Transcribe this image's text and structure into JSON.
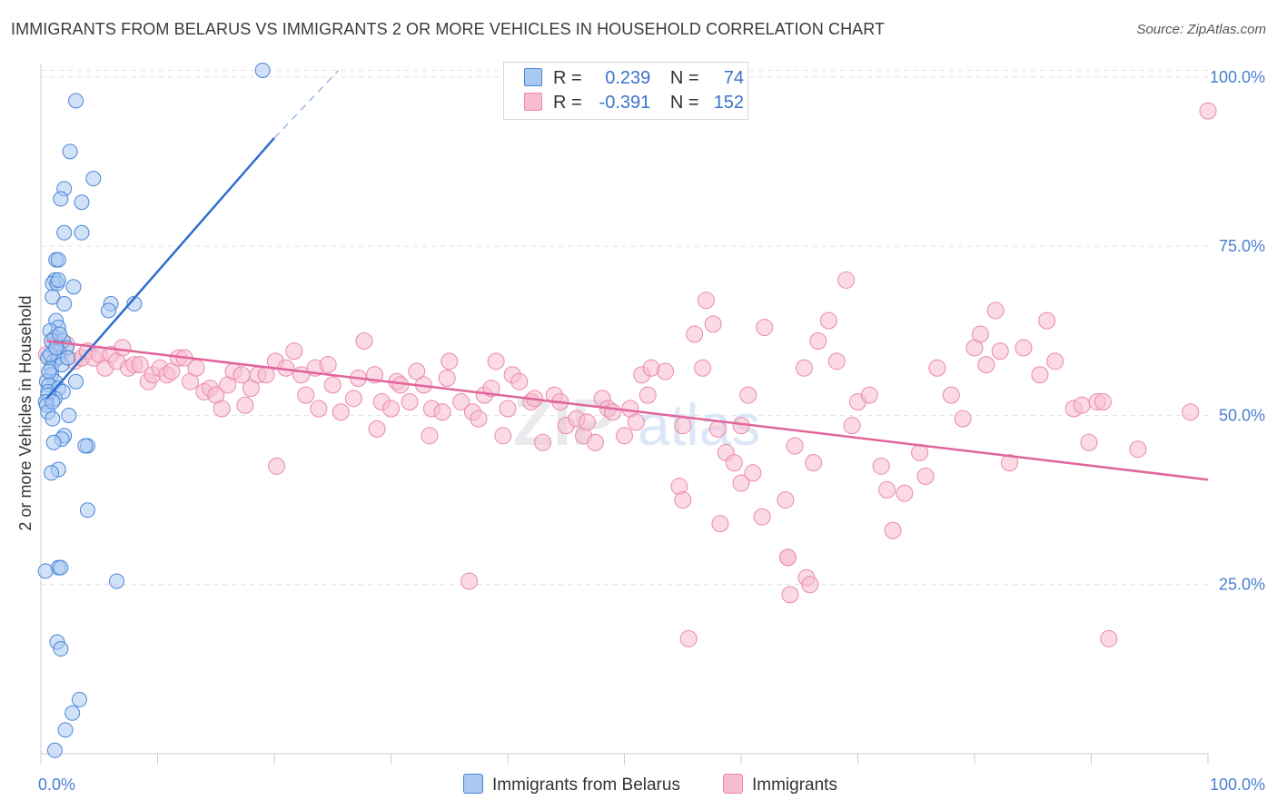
{
  "title": "IMMIGRANTS FROM BELARUS VS IMMIGRANTS 2 OR MORE VEHICLES IN HOUSEHOLD CORRELATION CHART",
  "source": "Source: ZipAtlas.com",
  "colors": {
    "blue_fill": "#a9c8f2",
    "blue_stroke": "#4a86d6",
    "blue_line": "#2e6fd0",
    "pink_fill": "#f7bcd0",
    "pink_stroke": "#e98aaa",
    "pink_line": "#e0659a",
    "tick_text": "#4a7fd0",
    "grid": "#e4e4e4"
  },
  "legend": {
    "rows": [
      {
        "r_label": "R =",
        "r_value": "0.239",
        "n_label": "N =",
        "n_value": "74"
      },
      {
        "r_label": "R =",
        "r_value": "-0.391",
        "n_label": "N =",
        "n_value": "152"
      }
    ]
  },
  "bottom_legend": [
    "Immigrants from Belarus",
    "Immigrants"
  ],
  "chart_data": {
    "type": "scatter",
    "title": "IMMIGRANTS FROM BELARUS VS IMMIGRANTS 2 OR MORE VEHICLES IN HOUSEHOLD CORRELATION CHART",
    "ylabel": "2 or more Vehicles in Household",
    "xlabel": "",
    "xlim": [
      0,
      100
    ],
    "ylim": [
      0,
      102
    ],
    "x_ticks": [
      "0.0%",
      "100.0%"
    ],
    "y_ticks": [
      {
        "value": 25,
        "label": "25.0%"
      },
      {
        "value": 50,
        "label": "50.0%"
      },
      {
        "value": 75,
        "label": "75.0%"
      },
      {
        "value": 100,
        "label": "100.0%"
      }
    ],
    "grid": "horizontal dashed",
    "legend_position": "top-center",
    "series": [
      {
        "name": "Immigrants from Belarus",
        "stats": {
          "R": 0.239,
          "N": 74
        },
        "trend": {
          "x0": 0.5,
          "y0": 52.5,
          "x1": 20,
          "y1": 91,
          "dashed_to": {
            "x": 25.5,
            "y": 101
          }
        },
        "points": [
          [
            19,
            101
          ],
          [
            3,
            96.5
          ],
          [
            2.5,
            89
          ],
          [
            4.5,
            85
          ],
          [
            2,
            83.5
          ],
          [
            1.7,
            82
          ],
          [
            3.5,
            81.5
          ],
          [
            2,
            77
          ],
          [
            3.5,
            77
          ],
          [
            1.3,
            73
          ],
          [
            1.5,
            73
          ],
          [
            1.2,
            70
          ],
          [
            1.0,
            69.5
          ],
          [
            1.4,
            69.5
          ],
          [
            1.5,
            70
          ],
          [
            2.8,
            69
          ],
          [
            1,
            67.5
          ],
          [
            2,
            66.5
          ],
          [
            8,
            66.5
          ],
          [
            6,
            66.5
          ],
          [
            5.8,
            65.5
          ],
          [
            1.3,
            64
          ],
          [
            1.5,
            63
          ],
          [
            0.8,
            62.5
          ],
          [
            1.2,
            61.5
          ],
          [
            1.9,
            61
          ],
          [
            2.2,
            60
          ],
          [
            0.9,
            61
          ],
          [
            1.2,
            59.5
          ],
          [
            1.5,
            59.5
          ],
          [
            0.6,
            58.5
          ],
          [
            1.1,
            58
          ],
          [
            1.5,
            58.5
          ],
          [
            0.9,
            57
          ],
          [
            1.8,
            57.5
          ],
          [
            0.9,
            56
          ],
          [
            1.2,
            55
          ],
          [
            0.5,
            55
          ],
          [
            0.7,
            54.5
          ],
          [
            1.5,
            54
          ],
          [
            3,
            55
          ],
          [
            0.6,
            53.5
          ],
          [
            1.9,
            53.5
          ],
          [
            1.2,
            52.5
          ],
          [
            0.6,
            53
          ],
          [
            0.4,
            52
          ],
          [
            0.5,
            51.5
          ],
          [
            0.6,
            50.5
          ],
          [
            1.0,
            49.5
          ],
          [
            2.4,
            50
          ],
          [
            2.0,
            47
          ],
          [
            1.8,
            46.5
          ],
          [
            1.1,
            46
          ],
          [
            4.0,
            45.5
          ],
          [
            3.8,
            45.5
          ],
          [
            1.5,
            42
          ],
          [
            0.9,
            41.5
          ],
          [
            4.0,
            36
          ],
          [
            1.5,
            27.5
          ],
          [
            1.7,
            27.5
          ],
          [
            0.4,
            27
          ],
          [
            6.5,
            25.5
          ],
          [
            1.4,
            16.5
          ],
          [
            1.7,
            15.5
          ],
          [
            3.3,
            8
          ],
          [
            2.7,
            6
          ],
          [
            2.1,
            3.5
          ],
          [
            1.2,
            0.5
          ],
          [
            0.8,
            59
          ],
          [
            1.6,
            62
          ],
          [
            2.3,
            58.5
          ],
          [
            0.7,
            56.5
          ],
          [
            1.0,
            52
          ],
          [
            1.3,
            60
          ]
        ]
      },
      {
        "name": "Immigrants",
        "stats": {
          "R": -0.391,
          "N": 152
        },
        "trend": {
          "x0": 0.5,
          "y0": 61,
          "x1": 100,
          "y1": 40.5
        },
        "points": [
          [
            100,
            95
          ],
          [
            0.5,
            59
          ],
          [
            1,
            61
          ],
          [
            1.6,
            59.5
          ],
          [
            2.2,
            60.5
          ],
          [
            2.9,
            58
          ],
          [
            3.5,
            58.5
          ],
          [
            4.0,
            59.5
          ],
          [
            4.5,
            58.5
          ],
          [
            5.0,
            59
          ],
          [
            5.5,
            57
          ],
          [
            6.0,
            59
          ],
          [
            6.5,
            58
          ],
          [
            7.0,
            60
          ],
          [
            7.5,
            57
          ],
          [
            8.0,
            57.5
          ],
          [
            8.5,
            57.5
          ],
          [
            9.2,
            55
          ],
          [
            9.6,
            56
          ],
          [
            10.2,
            57
          ],
          [
            10.8,
            56
          ],
          [
            11.2,
            56.5
          ],
          [
            11.8,
            58.5
          ],
          [
            12.3,
            58.5
          ],
          [
            12.8,
            55
          ],
          [
            13.3,
            57
          ],
          [
            14,
            53.5
          ],
          [
            14.5,
            54
          ],
          [
            15,
            53
          ],
          [
            15.5,
            51
          ],
          [
            16,
            54.5
          ],
          [
            16.5,
            56.5
          ],
          [
            17.2,
            56
          ],
          [
            17.5,
            51.5
          ],
          [
            18,
            54
          ],
          [
            18.6,
            56
          ],
          [
            19.3,
            56
          ],
          [
            20.1,
            58
          ],
          [
            20.2,
            42.5
          ],
          [
            21,
            57
          ],
          [
            21.7,
            59.5
          ],
          [
            22.3,
            56
          ],
          [
            22.7,
            53
          ],
          [
            23.5,
            57
          ],
          [
            23.8,
            51
          ],
          [
            24.6,
            57.5
          ],
          [
            25,
            54.5
          ],
          [
            25.7,
            50.5
          ],
          [
            26.8,
            52.5
          ],
          [
            27.2,
            55.5
          ],
          [
            27.7,
            61
          ],
          [
            28.6,
            56
          ],
          [
            28.8,
            48
          ],
          [
            29.2,
            52
          ],
          [
            30,
            51
          ],
          [
            30.5,
            55
          ],
          [
            30.8,
            54.5
          ],
          [
            31.6,
            52
          ],
          [
            32.2,
            56.5
          ],
          [
            32.8,
            54.5
          ],
          [
            33.3,
            47
          ],
          [
            33.5,
            51
          ],
          [
            34.4,
            50.5
          ],
          [
            34.8,
            55.5
          ],
          [
            35,
            58
          ],
          [
            36,
            52
          ],
          [
            37,
            50.5
          ],
          [
            36.7,
            25.5
          ],
          [
            37.5,
            49.5
          ],
          [
            38,
            53
          ],
          [
            38.6,
            54
          ],
          [
            39,
            58
          ],
          [
            39.6,
            47
          ],
          [
            40,
            51
          ],
          [
            40.4,
            56
          ],
          [
            41,
            55
          ],
          [
            42,
            52
          ],
          [
            42.3,
            52.5
          ],
          [
            43,
            46
          ],
          [
            44,
            53
          ],
          [
            44.5,
            52
          ],
          [
            45,
            48.5
          ],
          [
            45.9,
            49.5
          ],
          [
            46.5,
            47
          ],
          [
            46.8,
            49
          ],
          [
            47.5,
            46
          ],
          [
            48.1,
            52.5
          ],
          [
            48.6,
            51
          ],
          [
            49,
            50.5
          ],
          [
            50,
            47
          ],
          [
            50.5,
            51
          ],
          [
            51,
            49
          ],
          [
            51.5,
            56
          ],
          [
            52,
            53
          ],
          [
            52.3,
            57
          ],
          [
            53.5,
            56.5
          ],
          [
            54.7,
            39.5
          ],
          [
            55,
            48.5
          ],
          [
            56,
            62
          ],
          [
            56.7,
            57
          ],
          [
            57,
            67
          ],
          [
            57.6,
            63.5
          ],
          [
            58,
            48
          ],
          [
            58.7,
            44.5
          ],
          [
            58.2,
            34
          ],
          [
            59.4,
            43
          ],
          [
            60,
            40
          ],
          [
            60.6,
            53
          ],
          [
            61,
            41.5
          ],
          [
            61.8,
            35
          ],
          [
            62,
            63
          ],
          [
            63.8,
            37.5
          ],
          [
            64,
            29
          ],
          [
            64.2,
            23.5
          ],
          [
            64.6,
            45.5
          ],
          [
            65.4,
            57
          ],
          [
            65.6,
            26
          ],
          [
            65.9,
            25
          ],
          [
            66.2,
            43
          ],
          [
            66.6,
            61
          ],
          [
            67.5,
            64
          ],
          [
            68.2,
            58
          ],
          [
            69,
            70
          ],
          [
            69.5,
            48.5
          ],
          [
            70,
            52
          ],
          [
            71,
            53
          ],
          [
            72,
            42.5
          ],
          [
            72.5,
            39
          ],
          [
            73,
            33
          ],
          [
            74,
            38.5
          ],
          [
            75.3,
            44.5
          ],
          [
            75.8,
            41
          ],
          [
            76.8,
            57
          ],
          [
            78,
            53
          ],
          [
            79,
            49.5
          ],
          [
            80,
            60
          ],
          [
            80.5,
            62
          ],
          [
            81,
            57.5
          ],
          [
            81.8,
            65.5
          ],
          [
            82.2,
            59.5
          ],
          [
            83,
            43
          ],
          [
            84.2,
            60
          ],
          [
            85.6,
            56
          ],
          [
            86.2,
            64
          ],
          [
            86.9,
            58
          ],
          [
            88.5,
            51
          ],
          [
            89.2,
            51.5
          ],
          [
            89.8,
            46
          ],
          [
            90.5,
            52
          ],
          [
            91,
            52
          ],
          [
            94,
            45
          ],
          [
            98.5,
            50.5
          ],
          [
            91.5,
            17
          ],
          [
            55.5,
            17
          ],
          [
            55,
            37.5
          ],
          [
            60,
            48.5
          ],
          [
            64,
            29
          ]
        ]
      }
    ]
  }
}
